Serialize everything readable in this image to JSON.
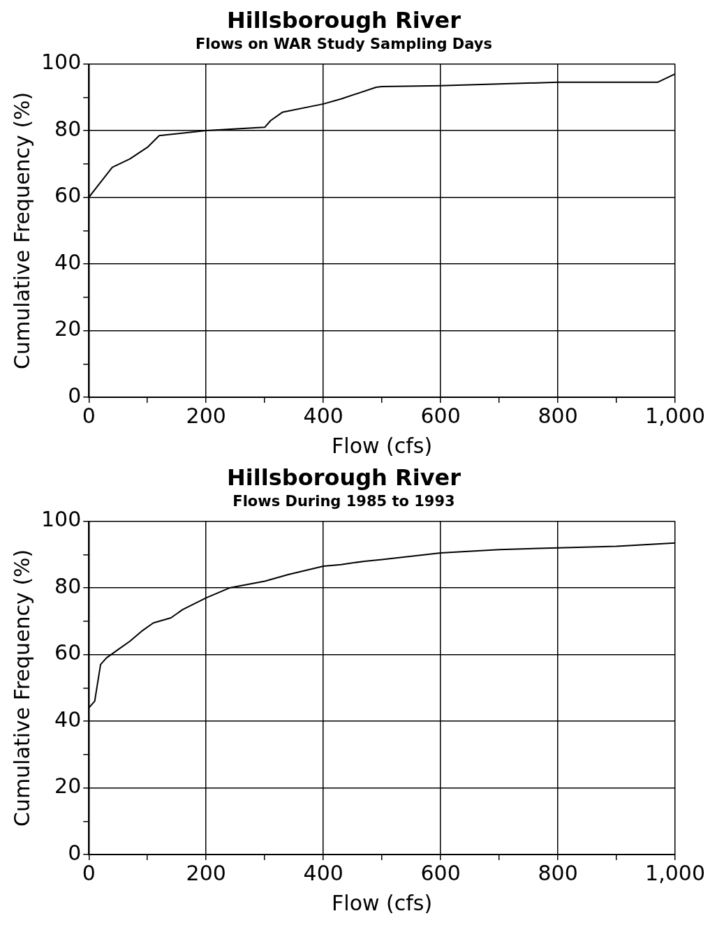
{
  "chart_data": [
    {
      "type": "line",
      "title": "Hillsborough River",
      "subtitle": "Flows on WAR Study Sampling Days",
      "xlabel": "Flow (cfs)",
      "ylabel": "Cumulative Frequency (%)",
      "x": [
        0,
        40,
        70,
        100,
        120,
        200,
        300,
        310,
        330,
        400,
        430,
        490,
        500,
        600,
        800,
        970,
        1000
      ],
      "series": [
        {
          "color": "#000000",
          "values": [
            60,
            69,
            71.5,
            75,
            78.5,
            80,
            81,
            83,
            85.5,
            88,
            89.5,
            93,
            93.2,
            93.5,
            94.5,
            94.5,
            97
          ]
        }
      ],
      "xlim": [
        0,
        1000
      ],
      "ylim": [
        0,
        100
      ],
      "xticks": [
        0,
        {
          "value": 100,
          "label": null
        },
        200,
        {
          "value": 300,
          "label": null
        },
        400,
        {
          "value": 500,
          "label": null
        },
        600,
        {
          "value": 700,
          "label": null
        },
        800,
        {
          "value": 900,
          "label": null
        },
        {
          "value": 1000,
          "label": "1,000"
        }
      ],
      "yticks": [
        0,
        {
          "value": 10,
          "label": null
        },
        20,
        {
          "value": 30,
          "label": null
        },
        40,
        {
          "value": 50,
          "label": null
        },
        60,
        {
          "value": 70,
          "label": null
        },
        80,
        {
          "value": 90,
          "label": null
        },
        100
      ],
      "grid": true,
      "legend": false,
      "marker": "none",
      "line_style": "solid"
    },
    {
      "type": "line",
      "title": "Hillsborough River",
      "subtitle": "Flows During 1985 to 1993",
      "xlabel": "Flow (cfs)",
      "ylabel": "Cumulative Frequency (%)",
      "x": [
        0,
        10,
        20,
        30,
        50,
        70,
        90,
        110,
        140,
        160,
        200,
        240,
        300,
        340,
        400,
        430,
        470,
        500,
        600,
        700,
        800,
        900,
        1000
      ],
      "series": [
        {
          "color": "#000000",
          "values": [
            44,
            46,
            57,
            59,
            61.5,
            64,
            67,
            69.5,
            71,
            73.5,
            77,
            80,
            82,
            84,
            86.5,
            87,
            88,
            88.5,
            90.5,
            91.5,
            92,
            92.5,
            93.5
          ]
        }
      ],
      "xlim": [
        0,
        1000
      ],
      "ylim": [
        0,
        100
      ],
      "xticks": [
        0,
        {
          "value": 100,
          "label": null
        },
        200,
        {
          "value": 300,
          "label": null
        },
        400,
        {
          "value": 500,
          "label": null
        },
        600,
        {
          "value": 700,
          "label": null
        },
        800,
        {
          "value": 900,
          "label": null
        },
        {
          "value": 1000,
          "label": "1,000"
        }
      ],
      "yticks": [
        0,
        {
          "value": 10,
          "label": null
        },
        20,
        {
          "value": 30,
          "label": null
        },
        40,
        {
          "value": 50,
          "label": null
        },
        60,
        {
          "value": 70,
          "label": null
        },
        80,
        {
          "value": 90,
          "label": null
        },
        100
      ],
      "grid": true,
      "legend": false,
      "marker": "none",
      "line_style": "solid"
    }
  ]
}
